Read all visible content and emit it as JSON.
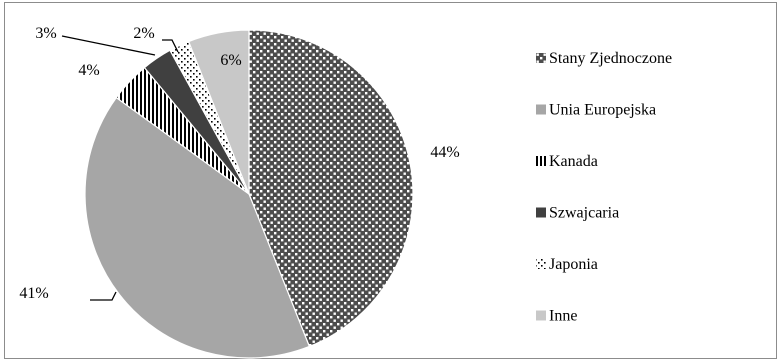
{
  "chart_data": {
    "type": "pie",
    "title": "",
    "slices": [
      {
        "label": "Stany Zjednoczone",
        "value": 44,
        "value_label": "44%",
        "color": "#d4d4d4",
        "pattern": "dots-light"
      },
      {
        "label": "Unia Europejska",
        "value": 41,
        "value_label": "41%",
        "color": "#a6a6a6",
        "pattern": "solid"
      },
      {
        "label": "Kanada",
        "value": 4,
        "value_label": "4%",
        "color": "#ffffff",
        "pattern": "vertical-stripes"
      },
      {
        "label": "Szwajcaria",
        "value": 3,
        "value_label": "3%",
        "color": "#404040",
        "pattern": "solid"
      },
      {
        "label": "Japonia",
        "value": 2,
        "value_label": "2%",
        "color": "#ffffff",
        "pattern": "dots-dark"
      },
      {
        "label": "Inne",
        "value": 6,
        "value_label": "6%",
        "color": "#c8c8c8",
        "pattern": "solid"
      }
    ],
    "legend_position": "right"
  }
}
